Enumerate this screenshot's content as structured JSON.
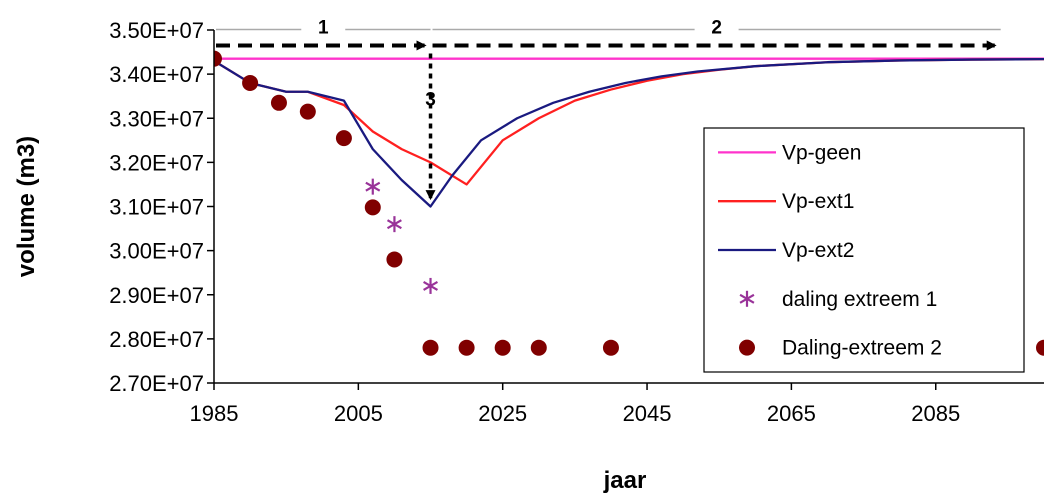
{
  "chart_data": {
    "type": "line",
    "xlabel": "jaar",
    "ylabel": "volume (m3)",
    "xlim": [
      1985,
      2100
    ],
    "ylim": [
      27000000,
      35000000
    ],
    "xticks": [
      1985,
      2005,
      2025,
      2045,
      2065,
      2085
    ],
    "xtick_labels": [
      "1985",
      "2005",
      "2025",
      "2045",
      "2065",
      "2085"
    ],
    "yticks": [
      27000000,
      28000000,
      29000000,
      30000000,
      31000000,
      32000000,
      33000000,
      34000000,
      35000000
    ],
    "ytick_labels": [
      "2.70E+07",
      "2.80E+07",
      "2.90E+07",
      "3.00E+07",
      "3.10E+07",
      "3.20E+07",
      "3.30E+07",
      "3.40E+07",
      "3.50E+07"
    ],
    "grid": false,
    "legend_position": "right",
    "series": [
      {
        "name": "Vp-geen",
        "kind": "line",
        "color": "#ff33cc",
        "x": [
          1985,
          2100
        ],
        "y": [
          34350000,
          34350000
        ]
      },
      {
        "name": "Vp-ext1",
        "kind": "line",
        "color": "#ff2020",
        "x": [
          1985,
          1990,
          1995,
          1998,
          2003,
          2007,
          2011,
          2015,
          2020,
          2025,
          2030,
          2035,
          2040,
          2045,
          2050,
          2055,
          2060,
          2070,
          2080,
          2090,
          2100
        ],
        "y": [
          34300000,
          33800000,
          33600000,
          33600000,
          33300000,
          32700000,
          32300000,
          32000000,
          31500000,
          32500000,
          33000000,
          33400000,
          33650000,
          33850000,
          34000000,
          34100000,
          34180000,
          34270000,
          34310000,
          34330000,
          34340000
        ]
      },
      {
        "name": "Vp-ext2",
        "kind": "line",
        "color": "#1a1a80",
        "x": [
          1985,
          1990,
          1995,
          1998,
          2003,
          2007,
          2011,
          2015,
          2018,
          2022,
          2027,
          2032,
          2037,
          2042,
          2047,
          2052,
          2060,
          2070,
          2080,
          2090,
          2100
        ],
        "y": [
          34300000,
          33800000,
          33600000,
          33600000,
          33400000,
          32300000,
          31600000,
          31000000,
          31700000,
          32500000,
          33000000,
          33350000,
          33600000,
          33800000,
          33950000,
          34060000,
          34180000,
          34270000,
          34310000,
          34330000,
          34340000
        ]
      },
      {
        "name": "daling extreem 1",
        "kind": "scatter",
        "marker": "asterisk",
        "color": "#993399",
        "x": [
          2007,
          2010,
          2015
        ],
        "y": [
          31450000,
          30600000,
          29200000
        ]
      },
      {
        "name": "Daling-extreem 2",
        "kind": "scatter",
        "marker": "circle",
        "color": "#800000",
        "x": [
          1985,
          1990,
          1994,
          1998,
          2003,
          2007,
          2010,
          2015,
          2020,
          2025,
          2030,
          2040,
          2100
        ],
        "y": [
          34350000,
          33800000,
          33350000,
          33150000,
          32550000,
          30980000,
          29800000,
          27800000,
          27800000,
          27800000,
          27800000,
          27800000,
          27800000
        ]
      }
    ],
    "annotations": [
      {
        "label": "1",
        "kind": "horizontal-arrow",
        "x_from": 1985,
        "x_to": 2015,
        "y": 34650000
      },
      {
        "label": "2",
        "kind": "horizontal-arrow",
        "x_from": 2015,
        "x_to": 2094,
        "y": 34650000
      },
      {
        "label": "3",
        "kind": "vertical-arrow",
        "x": 2015,
        "y_from": 34650000,
        "y_to": 31100000
      }
    ]
  }
}
